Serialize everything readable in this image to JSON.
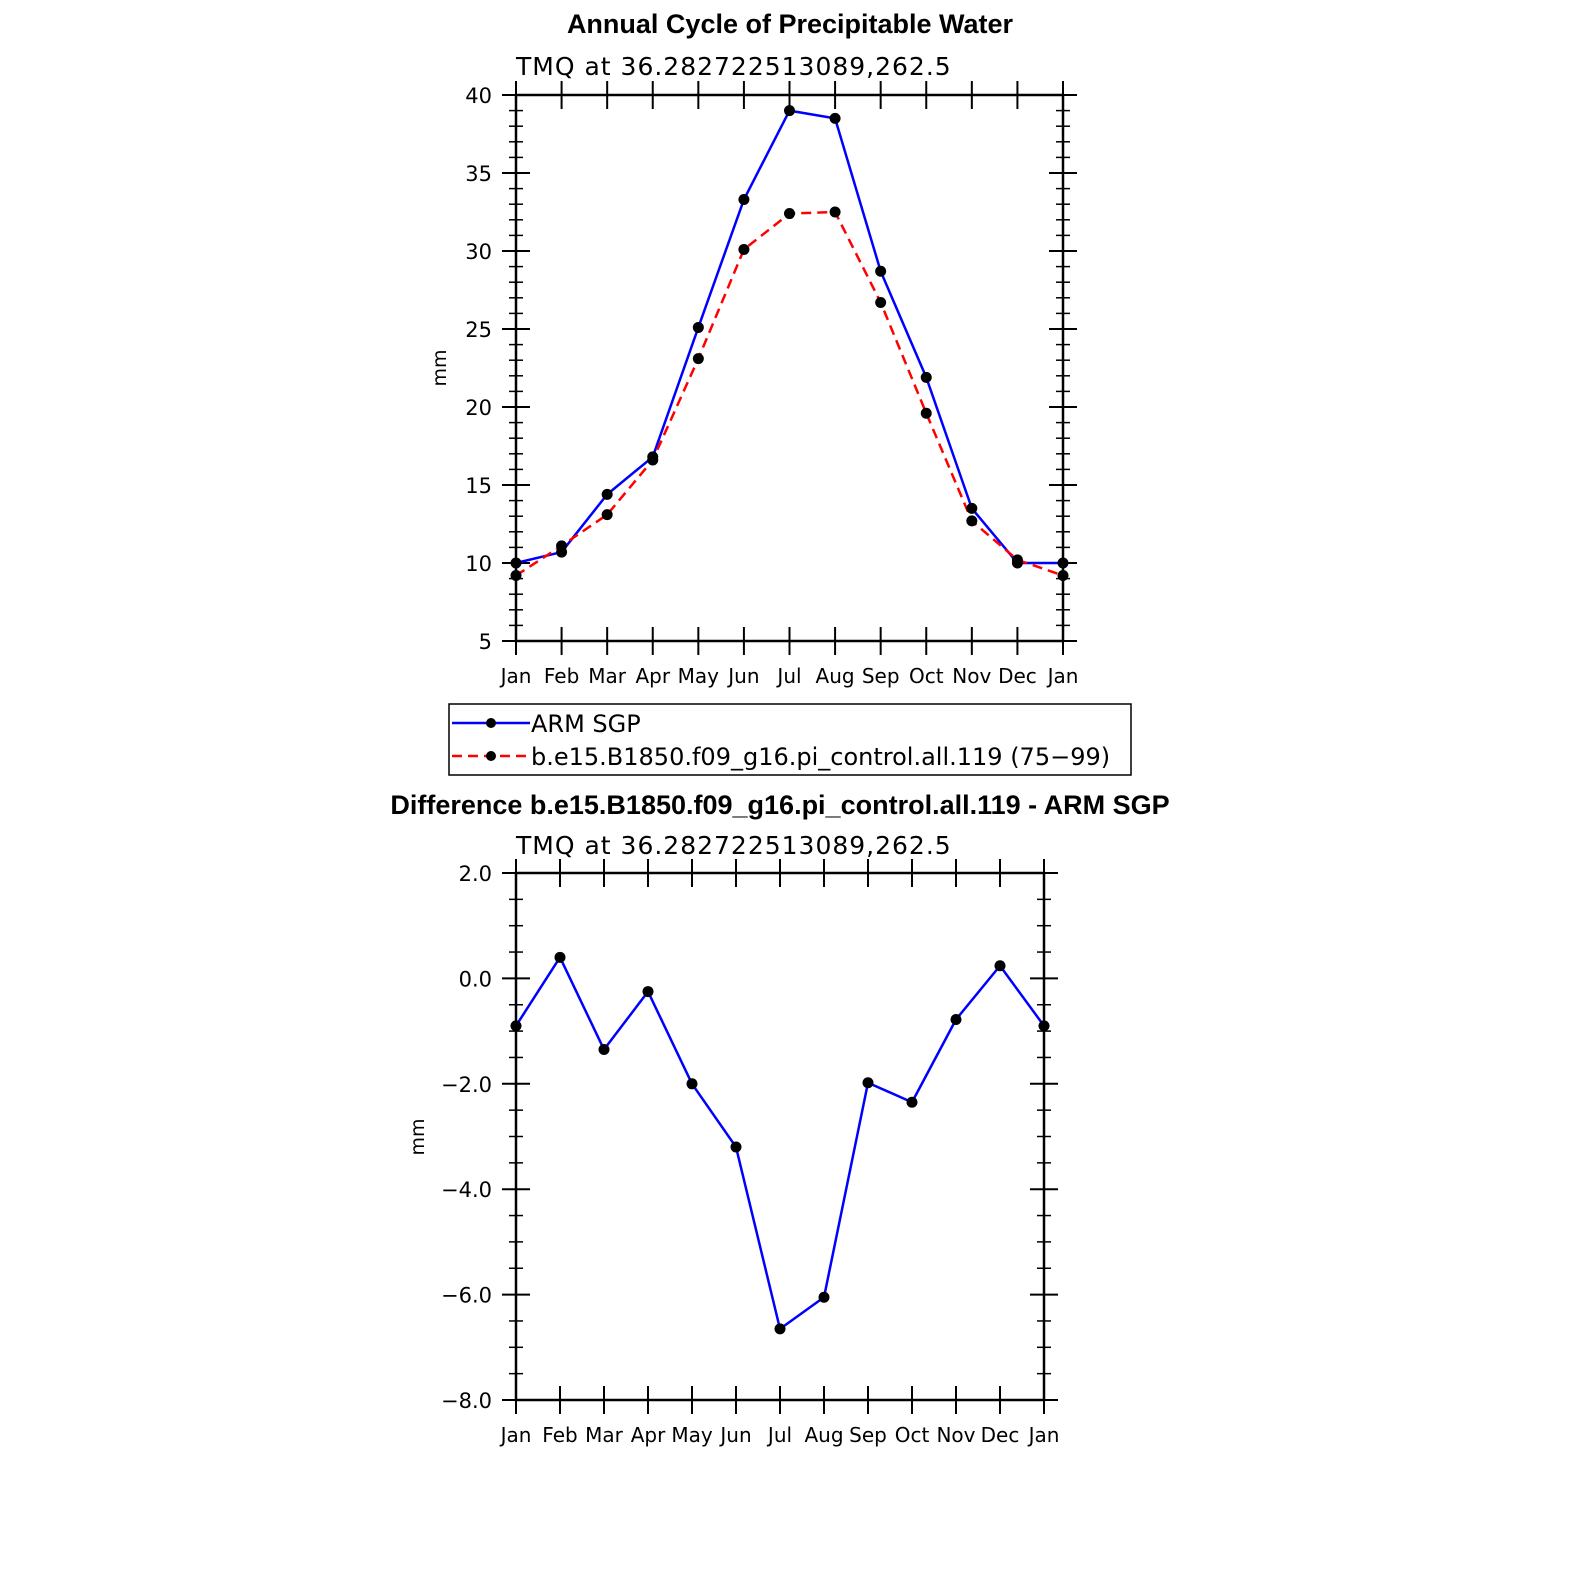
{
  "colors": {
    "series_obs": "#0000ff",
    "series_model": "#ff0000",
    "marker": "#000000",
    "axis": "#000000"
  },
  "chart_data": [
    {
      "type": "line",
      "title": "Annual Cycle of Precipitable Water",
      "subtitle": "TMQ at 36.282722513089,262.5",
      "xlabel": "",
      "ylabel": "mm",
      "categories": [
        "Jan",
        "Feb",
        "Mar",
        "Apr",
        "May",
        "Jun",
        "Jul",
        "Aug",
        "Sep",
        "Oct",
        "Nov",
        "Dec",
        "Jan"
      ],
      "ylim": [
        5,
        40
      ],
      "yticks": [
        5,
        10,
        15,
        20,
        25,
        30,
        35,
        40
      ],
      "ytick_labels": [
        "5",
        "10",
        "15",
        "20",
        "25",
        "30",
        "35",
        "40"
      ],
      "series": [
        {
          "name": "ARM SGP",
          "style": "solid",
          "color": "#0000ff",
          "values": [
            10.0,
            10.7,
            14.4,
            16.8,
            25.1,
            33.3,
            39.0,
            38.5,
            28.7,
            21.9,
            13.5,
            10.0,
            10.0
          ]
        },
        {
          "name": "b.e15.B1850.f09_g16.pi_control.all.119 (75−99)",
          "style": "dashed",
          "color": "#ff0000",
          "values": [
            9.2,
            11.1,
            13.1,
            16.6,
            23.1,
            30.1,
            32.4,
            32.5,
            26.7,
            19.6,
            12.7,
            10.2,
            9.2
          ]
        }
      ],
      "legend": "below"
    },
    {
      "type": "line",
      "title": "Difference b.e15.B1850.f09_g16.pi_control.all.119 - ARM SGP",
      "subtitle": "TMQ at 36.282722513089,262.5",
      "xlabel": "",
      "ylabel": "mm",
      "categories": [
        "Jan",
        "Feb",
        "Mar",
        "Apr",
        "May",
        "Jun",
        "Jul",
        "Aug",
        "Sep",
        "Oct",
        "Nov",
        "Dec",
        "Jan"
      ],
      "ylim": [
        -8.0,
        2.0
      ],
      "yticks": [
        -8,
        -6,
        -4,
        -2,
        0,
        2
      ],
      "ytick_labels": [
        "−8.0",
        "−6.0",
        "−4.0",
        "−2.0",
        "0.0",
        "2.0"
      ],
      "series": [
        {
          "name": "Difference",
          "style": "solid",
          "color": "#0000ff",
          "values": [
            -0.9,
            0.4,
            -1.35,
            -0.25,
            -2.0,
            -3.2,
            -6.65,
            -6.05,
            -1.98,
            -2.35,
            -0.78,
            0.24,
            -0.9
          ]
        }
      ]
    }
  ]
}
